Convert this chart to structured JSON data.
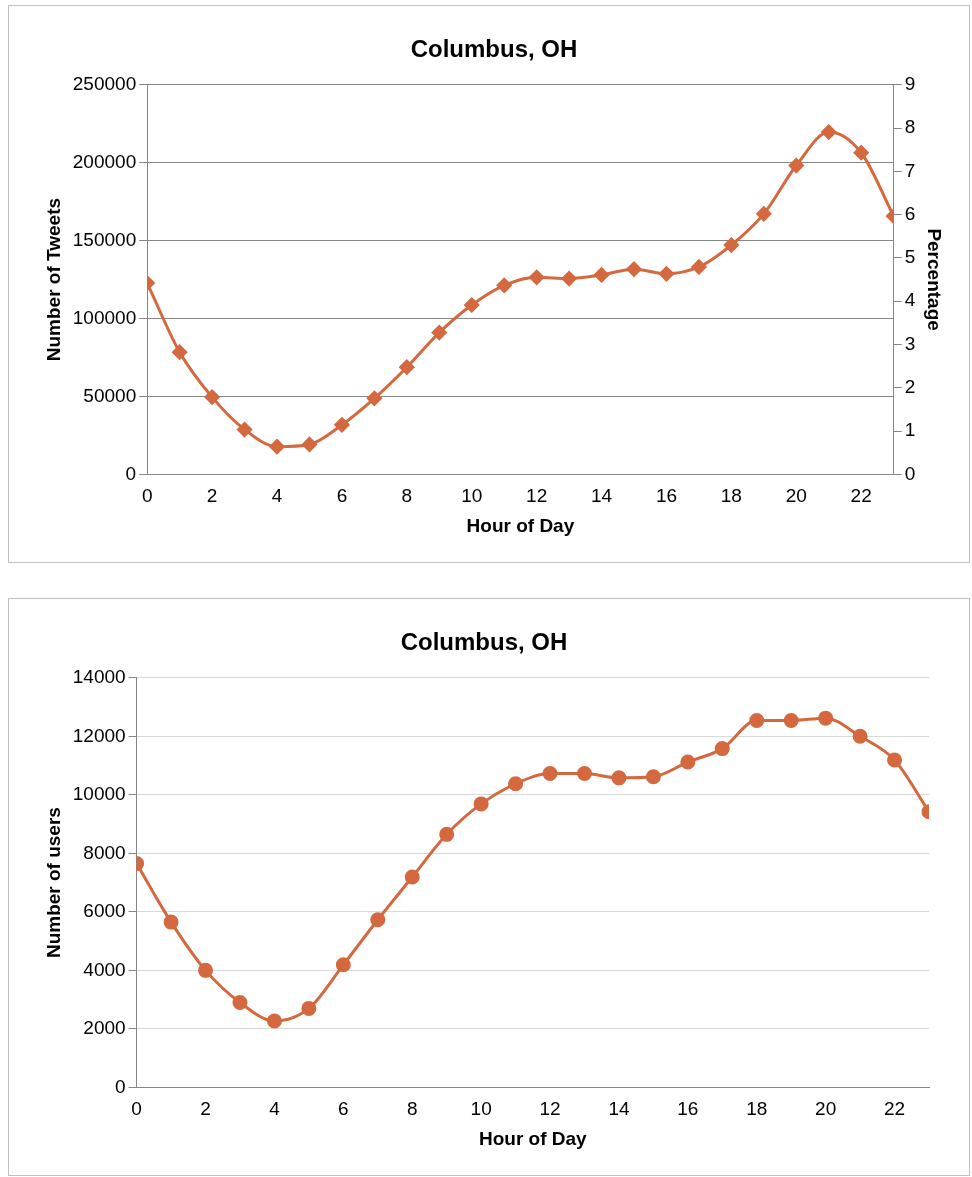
{
  "chart_data": [
    {
      "type": "line",
      "title": "Columbus, OH",
      "xlabel": "Hour of Day",
      "ylabel": "Number of Tweets",
      "y2label": "Percentage",
      "x": [
        0,
        1,
        2,
        3,
        4,
        5,
        6,
        7,
        8,
        9,
        10,
        11,
        12,
        13,
        14,
        15,
        16,
        17,
        18,
        19,
        20,
        21,
        22,
        23
      ],
      "series": [
        {
          "color": "#d4683f",
          "values": [
            122800,
            78400,
            49600,
            28800,
            17800,
            19200,
            31800,
            48800,
            68800,
            91000,
            108700,
            121300,
            126500,
            125700,
            128000,
            131700,
            128700,
            133100,
            147200,
            167200,
            198200,
            219700,
            206400,
            165700
          ]
        }
      ],
      "xlim": [
        0,
        23
      ],
      "xticks": [
        0,
        2,
        4,
        6,
        8,
        10,
        12,
        14,
        16,
        18,
        20,
        22
      ],
      "ylim": [
        0,
        250000
      ],
      "yticks": [
        0,
        50000,
        100000,
        150000,
        200000,
        250000
      ],
      "y2lim": [
        0,
        9
      ],
      "y2ticks": [
        0,
        1,
        2,
        3,
        4,
        5,
        6,
        7,
        8,
        9
      ],
      "grid": "y",
      "legend": false,
      "marker": "diamond",
      "line_style": "solid"
    },
    {
      "type": "line",
      "title": "Columbus, OH",
      "xlabel": "Hour of Day",
      "ylabel": "Number of users",
      "x": [
        0,
        1,
        2,
        3,
        4,
        5,
        6,
        7,
        8,
        9,
        10,
        11,
        12,
        13,
        14,
        15,
        16,
        17,
        18,
        19,
        20,
        21,
        22,
        23
      ],
      "series": [
        {
          "color": "#d4683f",
          "values": [
            7650,
            5650,
            4000,
            2900,
            2270,
            2700,
            4190,
            5730,
            7190,
            8650,
            9690,
            10380,
            10730,
            10730,
            10580,
            10620,
            11120,
            11580,
            12540,
            12540,
            12620,
            12000,
            11190,
            9420
          ]
        }
      ],
      "xlim": [
        0,
        23
      ],
      "xticks": [
        0,
        2,
        4,
        6,
        8,
        10,
        12,
        14,
        16,
        18,
        20,
        22
      ],
      "ylim": [
        0,
        14000
      ],
      "yticks": [
        0,
        2000,
        4000,
        6000,
        8000,
        10000,
        12000,
        14000
      ],
      "grid": "y",
      "legend": false,
      "marker": "circle",
      "line_style": "solid"
    }
  ]
}
